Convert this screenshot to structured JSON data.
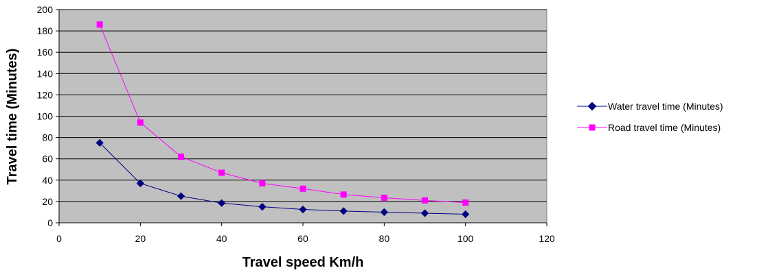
{
  "chart_data": {
    "type": "line",
    "title": "",
    "xlabel": "Travel speed Km/h",
    "ylabel": "Travel time (Minutes)",
    "xlim": [
      0,
      120
    ],
    "ylim": [
      0,
      200
    ],
    "x_ticks": [
      0,
      20,
      40,
      60,
      80,
      100,
      120
    ],
    "y_ticks": [
      0,
      20,
      40,
      60,
      80,
      100,
      120,
      140,
      160,
      180,
      200
    ],
    "grid": "horizontal",
    "plot_background": "#c0c0c0",
    "legend_position": "right",
    "x": [
      10,
      20,
      30,
      40,
      50,
      60,
      70,
      80,
      90,
      100
    ],
    "series": [
      {
        "name": "Water travel time (Minutes)",
        "color": "#000080",
        "marker": "diamond",
        "values": [
          75,
          37,
          25,
          18.5,
          15,
          12.5,
          11,
          10,
          9,
          8
        ]
      },
      {
        "name": "Road travel time (Minutes)",
        "color": "#ff00ff",
        "marker": "square",
        "values": [
          186,
          94,
          62,
          47,
          37,
          32,
          26.5,
          23.5,
          21,
          19
        ]
      }
    ]
  }
}
